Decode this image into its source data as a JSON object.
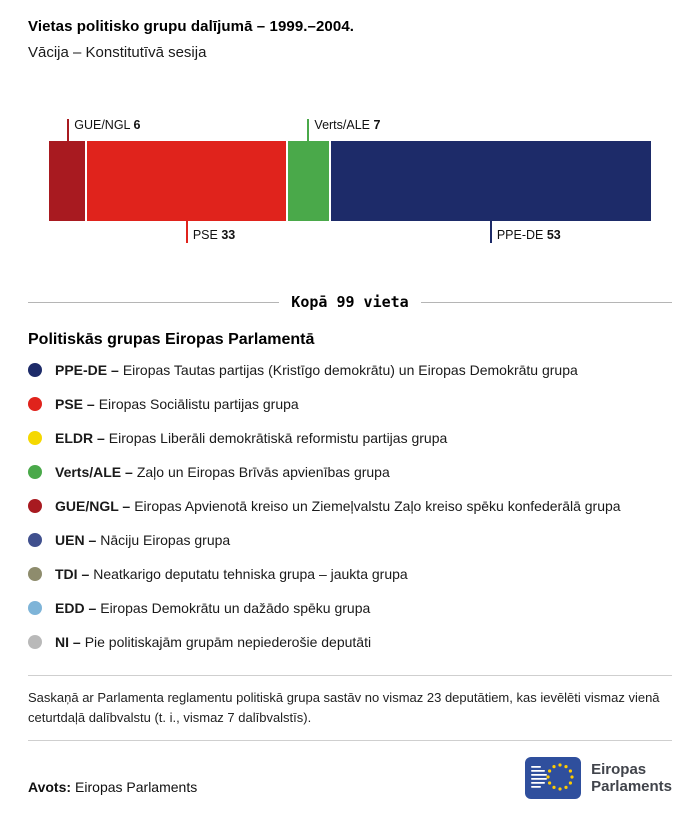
{
  "header": {
    "title": "Vietas politisko grupu dalījumā – 1999.–2004.",
    "subtitle": "Vācija – Konstitutīvā sesija"
  },
  "chart_data": {
    "type": "bar",
    "subtype": "stacked-horizontal-single-bar",
    "title": "Vietas politisko grupu dalījumā – 1999.–2004.",
    "subtitle": "Vācija – Konstitutīvā sesija",
    "total": 99,
    "total_label": "Kopā 99 vieta",
    "segments": [
      {
        "code": "GUE/NGL",
        "value": 6,
        "color": "#a81a20",
        "label_position": "top"
      },
      {
        "code": "PSE",
        "value": 33,
        "color": "#e0231c",
        "label_position": "bottom"
      },
      {
        "code": "Verts/ALE",
        "value": 7,
        "color": "#4aa94a",
        "label_position": "top"
      },
      {
        "code": "PPE-DE",
        "value": 53,
        "color": "#1d2b69",
        "label_position": "bottom"
      }
    ]
  },
  "legend": {
    "title": "Politiskās grupas Eiropas Parlamentā",
    "items": [
      {
        "code_label": "PPE-DE –",
        "description": "Eiropas Tautas partijas (Kristīgo demokrātu) un Eiropas Demokrātu grupa",
        "color": "#1d2b69"
      },
      {
        "code_label": "PSE –",
        "description": "Eiropas Sociālistu partijas grupa",
        "color": "#e0231c"
      },
      {
        "code_label": "ELDR –",
        "description": "Eiropas Liberāli demokrātiskā reformistu partijas grupa",
        "color": "#f5d800"
      },
      {
        "code_label": "Verts/ALE –",
        "description": "Zaļo un Eiropas Brīvās apvienības grupa",
        "color": "#4aa94a"
      },
      {
        "code_label": "GUE/NGL –",
        "description": "Eiropas Apvienotā kreiso un Ziemeļvalstu Zaļo kreiso spēku konfederālā grupa",
        "color": "#a81a20"
      },
      {
        "code_label": "UEN –",
        "description": "Nāciju Eiropas grupa",
        "color": "#40508e"
      },
      {
        "code_label": "TDI –",
        "description": "Neatkarigo deputatu tehniska grupa – jaukta grupa",
        "color": "#8e8c6d"
      },
      {
        "code_label": "EDD –",
        "description": "Eiropas Demokrātu un dažādo spēku grupa",
        "color": "#7eb4d8"
      },
      {
        "code_label": "NI –",
        "description": "Pie politiskajām grupām nepiederošie deputāti",
        "color": "#b9b9b9"
      }
    ]
  },
  "footer": {
    "note": "Saskaņā ar Parlamenta reglamentu politiskā grupa sastāv no vismaz 23 deputātiem, kas ievēlēti vismaz vienā ceturtdaļā dalībvalstu (t. i., vismaz 7 dalībvalstīs).",
    "source_label": "Avots:",
    "source_value": "Eiropas Parlaments",
    "logo_line1": "Eiropas",
    "logo_line2": "Parlaments"
  }
}
